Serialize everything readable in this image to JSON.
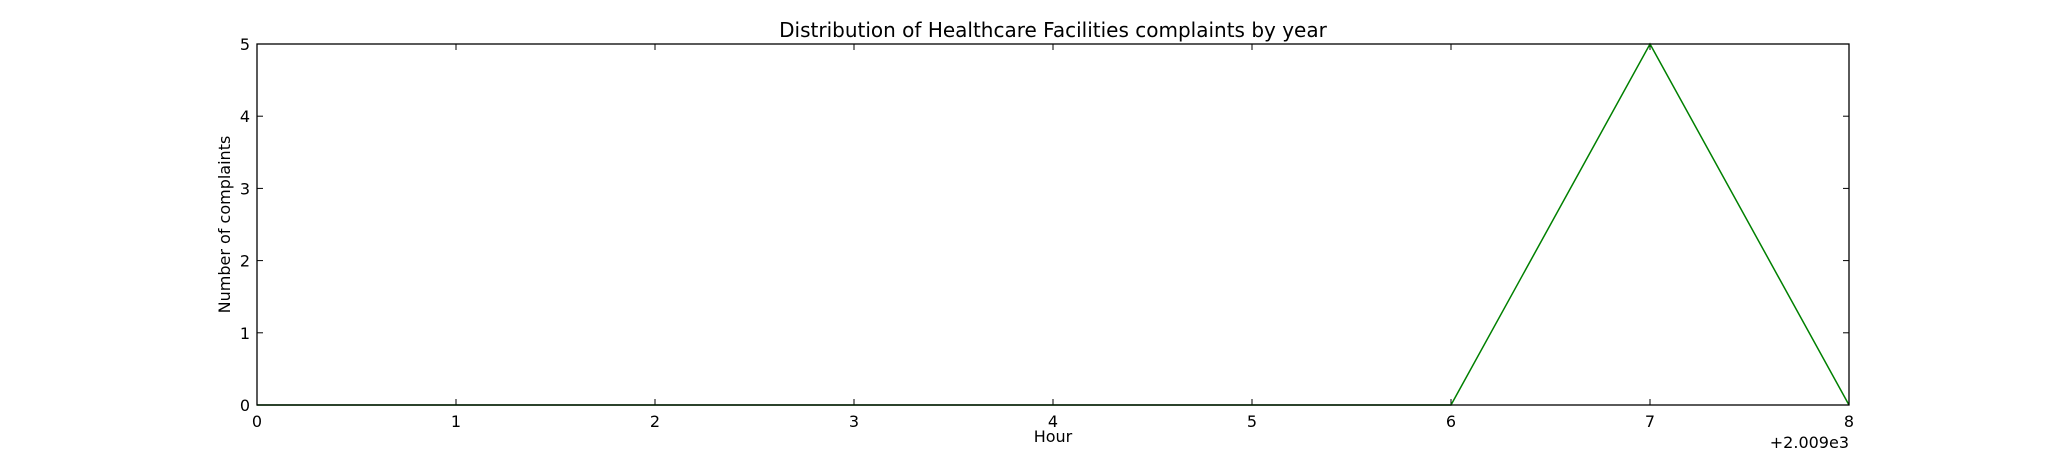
{
  "chart_data": {
    "type": "line",
    "title": "Distribution of  Healthcare Facilities complaints by year",
    "xlabel": "Hour",
    "ylabel": "Number of complaints",
    "x_offset_label": "+2.009e3",
    "x": [
      0,
      1,
      2,
      3,
      4,
      5,
      6,
      7,
      8
    ],
    "series": [
      {
        "values": [
          0,
          0,
          0,
          0,
          0,
          0,
          0,
          5,
          0
        ],
        "color": "#008000"
      }
    ],
    "xlim": [
      0,
      8
    ],
    "ylim": [
      0,
      5
    ],
    "xticks": [
      "0",
      "1",
      "2",
      "3",
      "4",
      "5",
      "6",
      "7",
      "8"
    ],
    "yticks": [
      "0",
      "1",
      "2",
      "3",
      "4",
      "5"
    ],
    "grid": false,
    "legend": "none"
  }
}
